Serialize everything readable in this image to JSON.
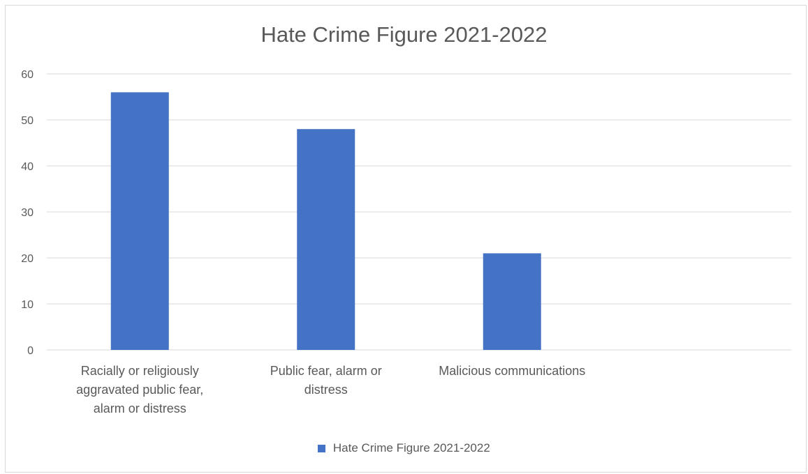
{
  "chart_data": {
    "type": "bar",
    "title": "Hate Crime Figure 2021-2022",
    "xlabel": "",
    "ylabel": "",
    "categories": [
      "Racially or religiously aggravated public fear, alarm or distress",
      "Public fear, alarm or distress",
      "Malicious communications",
      ""
    ],
    "category_label_lines": [
      [
        "Racially or religiously",
        "aggravated public fear,",
        "alarm or distress"
      ],
      [
        "Public fear, alarm or",
        "distress"
      ],
      [
        "Malicious communications"
      ],
      []
    ],
    "series": [
      {
        "name": "Hate Crime Figure 2021-2022",
        "values": [
          56,
          48,
          21,
          null
        ],
        "color": "#4472C4"
      }
    ],
    "ylim": [
      0,
      60
    ],
    "yticks": [
      0,
      10,
      20,
      30,
      40,
      50,
      60
    ],
    "grid": true,
    "legend": "bottom"
  }
}
